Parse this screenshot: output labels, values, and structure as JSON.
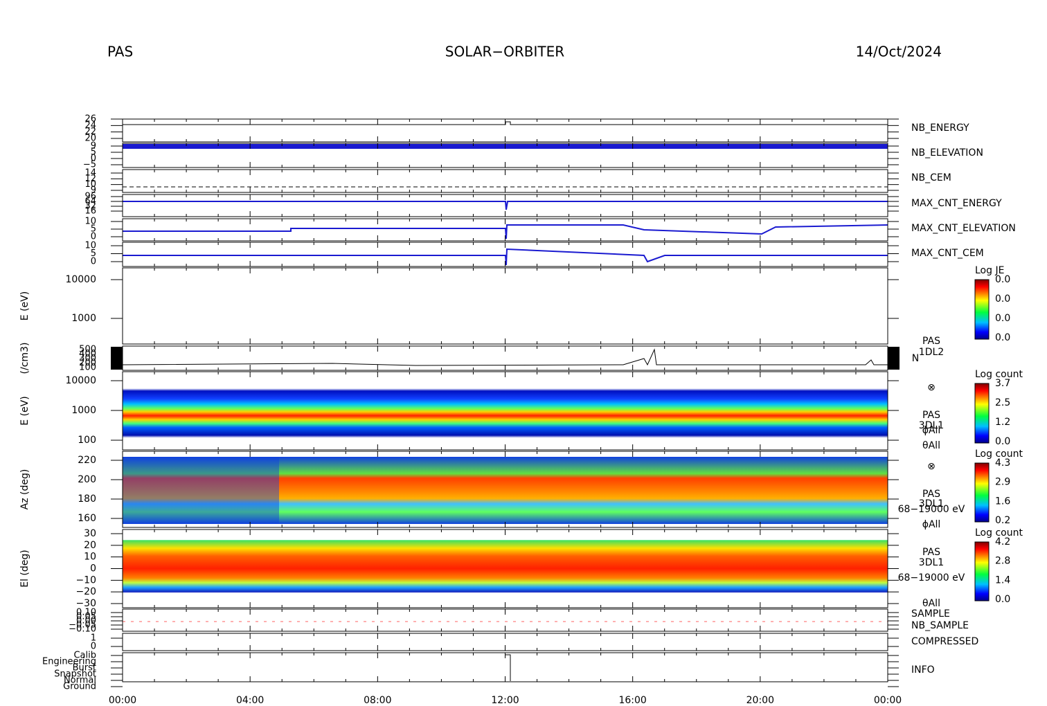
{
  "header": {
    "left": "PAS",
    "center": "SOLAR−ORBITER",
    "right": "14/Oct/2024"
  },
  "time_ticks": [
    "00:00",
    "04:00",
    "08:00",
    "12:00",
    "16:00",
    "20:00",
    "00:00"
  ],
  "panels": [
    {
      "yticks": [
        "26",
        "24",
        "22",
        "20"
      ],
      "labels": [
        {
          "text": "NB_ENERGY",
          "color": "#1a1aa8"
        }
      ]
    },
    {
      "yticks": [
        "9",
        "5",
        "0",
        "−5"
      ],
      "labels": [
        {
          "text": "NB_ELEVATION",
          "color": "#1a1aa8"
        }
      ]
    },
    {
      "yticks": [
        "14",
        "12",
        "10",
        "9"
      ],
      "labels": [
        {
          "text": "NB_CEM",
          "color": "#1a1aa8"
        }
      ]
    },
    {
      "yticks": [
        "96",
        "64",
        "32",
        "16"
      ],
      "labels": [
        {
          "text": "MAX_CNT_ENERGY",
          "color": "#1a1aa8"
        }
      ]
    },
    {
      "yticks": [
        "10",
        "5",
        "0"
      ],
      "labels": [
        {
          "text": "MAX_CNT_ELEVATION",
          "color": "#1a1aa8"
        }
      ]
    },
    {
      "yticks": [
        "10",
        "5",
        "0"
      ],
      "labels": [
        {
          "text": "MAX_CNT_CEM",
          "color": "#1a1aa8"
        }
      ]
    },
    {
      "ylabel": "E (eV)",
      "yticks": [
        "10000",
        "1000"
      ],
      "colorbar": {
        "title": "Log JE",
        "ticks": [
          "0.0",
          "0.0",
          "0.0",
          "0.0"
        ]
      }
    },
    {
      "ylabel": "(/cm3)",
      "yticks": [
        "500",
        "400",
        "300",
        "200",
        "100"
      ],
      "labels": [
        {
          "text": "PAS",
          "color": "#000"
        },
        {
          "text": "1DL2",
          "color": "#000"
        },
        {
          "text": "N",
          "color": "#000"
        }
      ]
    },
    {
      "ylabel": "E (eV)",
      "yticks": [
        "10000",
        "1000",
        "100"
      ],
      "labels": [
        {
          "text": "⊗",
          "color": "#000"
        },
        {
          "text": "PAS",
          "color": "#000"
        },
        {
          "text": "3DL1",
          "color": "#000"
        },
        {
          "text": "ϕAll",
          "color": "#000"
        },
        {
          "text": "θAll",
          "color": "#000"
        }
      ],
      "colorbar": {
        "title": "Log count",
        "ticks": [
          "3.7",
          "2.5",
          "1.2",
          "0.0"
        ]
      }
    },
    {
      "ylabel": "Az (deg)",
      "yticks": [
        "220",
        "200",
        "180",
        "160"
      ],
      "labels": [
        {
          "text": "⊗",
          "color": "#000"
        },
        {
          "text": "PAS",
          "color": "#000"
        },
        {
          "text": "3DL1",
          "color": "#000"
        },
        {
          "text": "68−19000 eV",
          "color": "#000"
        },
        {
          "text": "ϕAll",
          "color": "#000"
        }
      ],
      "colorbar": {
        "title": "Log count",
        "ticks": [
          "4.3",
          "2.9",
          "1.6",
          "0.2"
        ]
      }
    },
    {
      "ylabel": "El (deg)",
      "yticks": [
        "30",
        "20",
        "10",
        "0",
        "−10",
        "−20",
        "−30"
      ],
      "labels": [
        {
          "text": "PAS",
          "color": "#000"
        },
        {
          "text": "3DL1",
          "color": "#000"
        },
        {
          "text": "68−19000 eV",
          "color": "#000"
        },
        {
          "text": "θAll",
          "color": "#000"
        }
      ],
      "colorbar": {
        "title": "Log count",
        "ticks": [
          "4.2",
          "2.8",
          "1.4",
          "0.0"
        ]
      }
    },
    {
      "yticks": [
        "0.10",
        "0.05",
        "0.00",
        "−0.05",
        "−0.10"
      ],
      "labels": [
        {
          "text": "SAMPLE",
          "color": "#1a1aa8"
        },
        {
          "text": "NB_SAMPLE",
          "color": "#d01818"
        }
      ]
    },
    {
      "yticks": [
        "1",
        "0"
      ],
      "labels": [
        {
          "text": "COMPRESSED",
          "color": "#1a1aa8"
        }
      ]
    },
    {
      "yticks": [
        "Calib",
        "Engineering",
        "Burst",
        "Snapshot",
        "Normal",
        "Ground"
      ],
      "labels": [
        {
          "text": "INFO",
          "color": "#000"
        }
      ]
    }
  ]
}
